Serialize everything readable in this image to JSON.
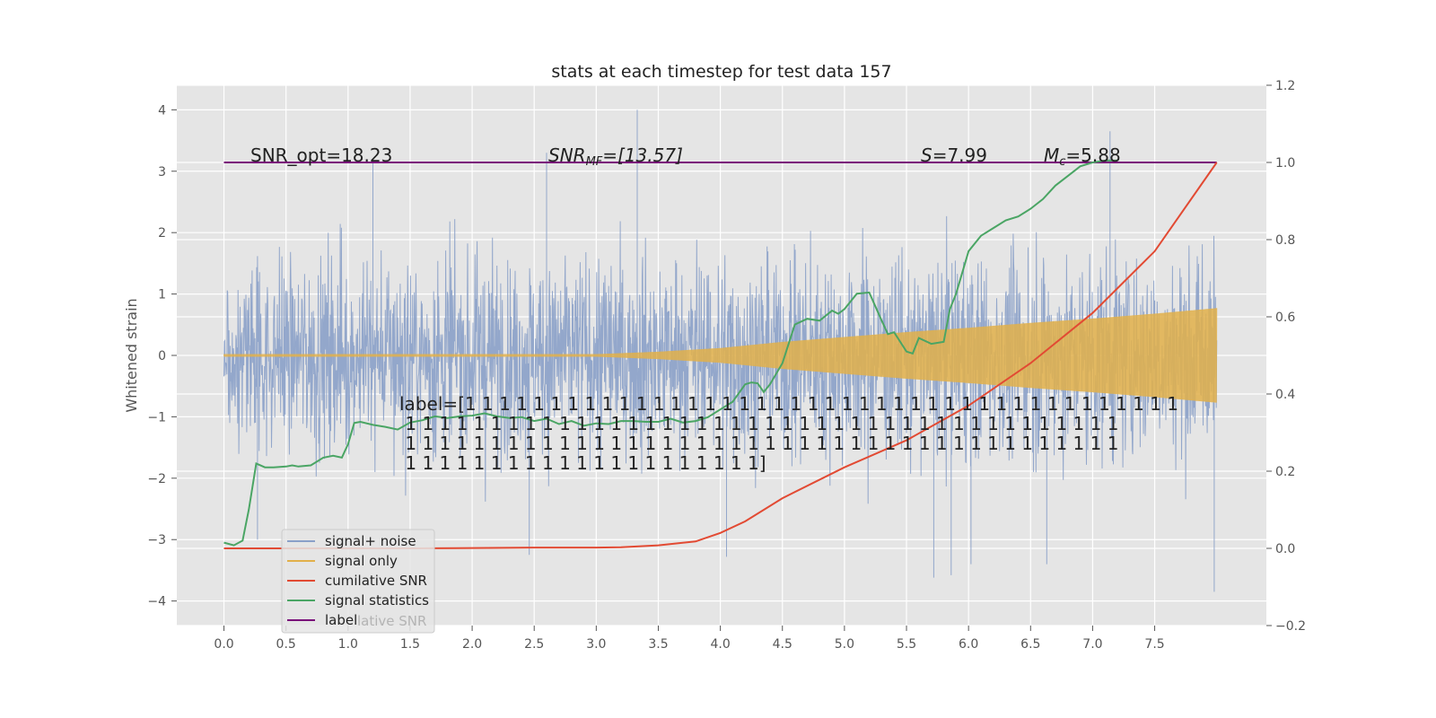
{
  "chart_data": {
    "type": "line",
    "title": "stats at each timestep for test data 157",
    "xlabel": "",
    "ylabel": "Whitened strain",
    "xlim": [
      -0.38,
      8.4
    ],
    "ylim": [
      -4.4,
      4.4
    ],
    "y2lim": [
      -0.2,
      1.2
    ],
    "xticks": [
      "0.0",
      "0.5",
      "1.0",
      "1.5",
      "2.0",
      "2.5",
      "3.0",
      "3.5",
      "4.0",
      "4.5",
      "5.0",
      "5.5",
      "6.0",
      "6.5",
      "7.0",
      "7.5"
    ],
    "xtick_values": [
      0,
      0.5,
      1,
      1.5,
      2,
      2.5,
      3,
      3.5,
      4,
      4.5,
      5,
      5.5,
      6,
      6.5,
      7,
      7.5
    ],
    "yticks": [
      "4",
      "3",
      "2",
      "1",
      "0",
      "−1",
      "−2",
      "−3",
      "−4"
    ],
    "ytick_values": [
      4,
      3,
      2,
      1,
      0,
      -1,
      -2,
      -3,
      -4
    ],
    "y2ticks": [
      "1.2",
      "1.0",
      "0.8",
      "0.6",
      "0.4",
      "0.2",
      "0.0",
      "−0.2"
    ],
    "y2tick_values": [
      1.2,
      1.0,
      0.8,
      0.6,
      0.4,
      0.2,
      0.0,
      -0.2
    ],
    "grid": true,
    "legend_position": "lower-left",
    "colors": {
      "background": "#e5e5e5",
      "noise": "#8aa0c8",
      "signal": "#e2b04a",
      "cumulative_snr": "#e24a33",
      "statistics": "#4aa564",
      "label": "#7a0f7a"
    },
    "annotations": {
      "snr_opt": "SNR_opt=18.23",
      "snr_mf_prefix": "SNR",
      "snr_mf_sub": "MF",
      "snr_mf_value": "=[13.57]",
      "s_symbol": "S",
      "s_value": "=7.99",
      "mc_symbol": "M",
      "mc_sub": "c",
      "mc_value": "=5.88",
      "label_lines": [
        "label=[1 1 1 1 1 1 1 1 1 1 1 1 1 1 1 1 1 1 1 1 1 1 1 1 1 1 1 1 1 1 1 1 1 1 1 1 1 1 1 1 1 1",
        " 1 1 1 1 1 1 1 1 1 1 1 1 1 1 1 1 1 1 1 1 1 1 1 1 1 1 1 1 1 1 1 1 1 1 1 1 1 1 1 1 1 1",
        " 1 1 1 1 1 1 1 1 1 1 1 1 1 1 1 1 1 1 1 1 1 1 1 1 1 1 1 1 1 1 1 1 1 1 1 1 1 1 1 1 1 1",
        " 1 1 1 1 1 1 1 1 1 1 1 1 1 1 1 1 1 1 1 1 1]"
      ]
    },
    "legend": [
      {
        "name": "signal+ noise",
        "color": "#8aa0c8"
      },
      {
        "name": "signal only",
        "color": "#e2b04a"
      },
      {
        "name": "cumilative SNR",
        "color": "#e24a33"
      },
      {
        "name": "signal statistics",
        "color": "#4aa564"
      },
      {
        "name": "label",
        "color": "#7a0f7a"
      }
    ],
    "legend_ghost_text": "lative SNR",
    "series": [
      {
        "name": "signal+ noise",
        "axis": "left",
        "x_range": [
          0,
          8
        ],
        "noise_std": 0.95,
        "extremes": [
          {
            "x": 3.33,
            "y": 4.0
          },
          {
            "x": 7.14,
            "y": 3.65
          },
          {
            "x": 7.98,
            "y": -3.85
          },
          {
            "x": 5.72,
            "y": -3.62
          },
          {
            "x": 5.86,
            "y": -3.58
          },
          {
            "x": 6.02,
            "y": -3.4
          },
          {
            "x": 2.46,
            "y": -3.25
          },
          {
            "x": 4.05,
            "y": -3.28
          },
          {
            "x": 6.63,
            "y": -3.4
          },
          {
            "x": 0.27,
            "y": -3.0
          },
          {
            "x": 1.2,
            "y": 3.2
          },
          {
            "x": 2.6,
            "y": 3.3
          }
        ]
      },
      {
        "name": "signal only",
        "axis": "left",
        "x_range": [
          0,
          8
        ],
        "amplitude": [
          [
            0,
            0.02
          ],
          [
            3.0,
            0.02
          ],
          [
            3.5,
            0.06
          ],
          [
            4.0,
            0.12
          ],
          [
            4.5,
            0.22
          ],
          [
            5.0,
            0.3
          ],
          [
            5.5,
            0.38
          ],
          [
            6.0,
            0.45
          ],
          [
            6.5,
            0.53
          ],
          [
            7.0,
            0.6
          ],
          [
            7.5,
            0.68
          ],
          [
            8.0,
            0.77
          ]
        ]
      },
      {
        "name": "cumilative SNR",
        "axis": "right",
        "x": [
          0,
          0.5,
          1.0,
          1.5,
          2.0,
          2.5,
          3.0,
          3.2,
          3.5,
          3.8,
          4.0,
          4.2,
          4.5,
          5.0,
          5.5,
          6.0,
          6.5,
          7.0,
          7.5,
          8.0
        ],
        "y": [
          0.0,
          0.0,
          0.0,
          0.0,
          0.001,
          0.002,
          0.002,
          0.003,
          0.008,
          0.018,
          0.04,
          0.07,
          0.13,
          0.21,
          0.28,
          0.37,
          0.48,
          0.61,
          0.77,
          1.0
        ]
      },
      {
        "name": "signal statistics",
        "axis": "right",
        "x": [
          0,
          0.08,
          0.15,
          0.2,
          0.26,
          0.33,
          0.4,
          0.5,
          0.55,
          0.6,
          0.7,
          0.8,
          0.88,
          0.95,
          1.0,
          1.05,
          1.1,
          1.2,
          1.3,
          1.4,
          1.5,
          1.6,
          1.7,
          1.8,
          1.9,
          2.0,
          2.1,
          2.2,
          2.3,
          2.4,
          2.5,
          2.6,
          2.7,
          2.8,
          2.9,
          3.0,
          3.1,
          3.2,
          3.3,
          3.4,
          3.5,
          3.6,
          3.7,
          3.8,
          3.9,
          4.0,
          4.1,
          4.2,
          4.25,
          4.3,
          4.35,
          4.4,
          4.5,
          4.6,
          4.7,
          4.8,
          4.9,
          4.95,
          5.0,
          5.1,
          5.2,
          5.3,
          5.35,
          5.4,
          5.5,
          5.55,
          5.6,
          5.7,
          5.8,
          5.85,
          5.9,
          6.0,
          6.1,
          6.2,
          6.3,
          6.4,
          6.5,
          6.6,
          6.7,
          6.8,
          6.9,
          7.0,
          7.1,
          7.2
        ],
        "y": [
          0.015,
          0.008,
          0.02,
          0.1,
          0.22,
          0.21,
          0.21,
          0.212,
          0.215,
          0.212,
          0.215,
          0.235,
          0.24,
          0.235,
          0.27,
          0.325,
          0.328,
          0.32,
          0.315,
          0.308,
          0.326,
          0.332,
          0.342,
          0.338,
          0.342,
          0.344,
          0.35,
          0.342,
          0.338,
          0.34,
          0.33,
          0.336,
          0.322,
          0.33,
          0.318,
          0.324,
          0.322,
          0.33,
          0.33,
          0.328,
          0.328,
          0.336,
          0.326,
          0.33,
          0.34,
          0.36,
          0.38,
          0.425,
          0.43,
          0.428,
          0.405,
          0.425,
          0.48,
          0.58,
          0.595,
          0.59,
          0.616,
          0.608,
          0.62,
          0.66,
          0.663,
          0.59,
          0.555,
          0.56,
          0.51,
          0.505,
          0.545,
          0.53,
          0.535,
          0.62,
          0.66,
          0.77,
          0.81,
          0.83,
          0.85,
          0.86,
          0.88,
          0.905,
          0.94,
          0.965,
          0.99,
          1.0,
          1.005,
          1.005
        ]
      },
      {
        "name": "label",
        "axis": "right",
        "x": [
          0,
          8.0
        ],
        "y": [
          1.0,
          1.0
        ]
      }
    ]
  }
}
